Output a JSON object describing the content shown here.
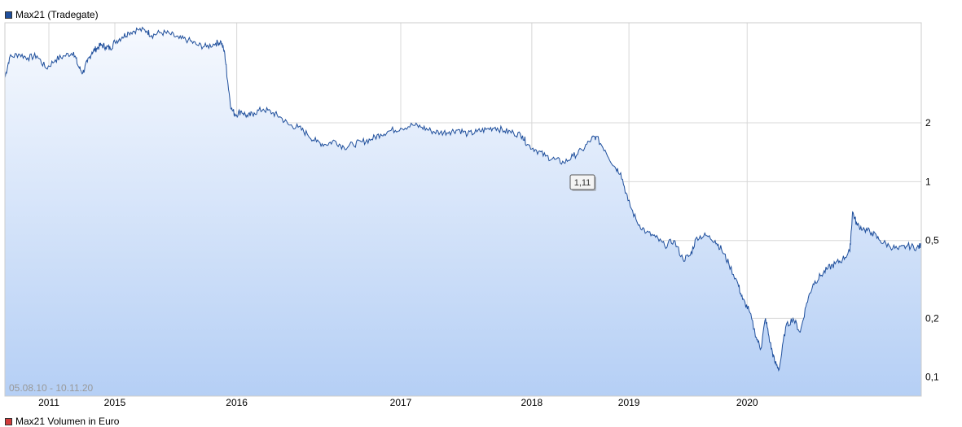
{
  "legend": {
    "price_series": "Max21 (Tradegate)",
    "volume_series": "Max21 Volumen in Euro"
  },
  "colors": {
    "price_line": "#1f4f9c",
    "price_swatch": "#1f4f9c",
    "volume_swatch": "#d23b3b",
    "fill_top": "#f6f9fe",
    "fill_bottom": "#b5cff5",
    "grid": "#d8d8d8"
  },
  "chart_data": {
    "type": "line",
    "date_range_label": "05.08.10 - 10.11.20",
    "tooltip_value": "1,11",
    "y_scale": "log",
    "ylim": [
      0.08,
      6.5
    ],
    "y_ticks": [
      {
        "value": 2,
        "label": "2"
      },
      {
        "value": 1,
        "label": "1"
      },
      {
        "value": 0.5,
        "label": "0,5"
      },
      {
        "value": 0.2,
        "label": "0,2"
      },
      {
        "value": 0.1,
        "label": "0,1"
      }
    ],
    "x_ticks": [
      {
        "x": 0.048,
        "label": "2011"
      },
      {
        "x": 0.12,
        "label": "2015"
      },
      {
        "x": 0.253,
        "label": "2016"
      },
      {
        "x": 0.432,
        "label": "2017"
      },
      {
        "x": 0.575,
        "label": "2018"
      },
      {
        "x": 0.681,
        "label": "2019"
      },
      {
        "x": 0.81,
        "label": "2020"
      }
    ],
    "grid": true,
    "legend_position": "top-left",
    "series": [
      {
        "name": "Max21 (Tradegate)",
        "points": [
          [
            0.0,
            3.4
          ],
          [
            0.005,
            4.3
          ],
          [
            0.015,
            4.5
          ],
          [
            0.025,
            4.3
          ],
          [
            0.035,
            4.4
          ],
          [
            0.045,
            3.8
          ],
          [
            0.055,
            4.2
          ],
          [
            0.065,
            4.4
          ],
          [
            0.075,
            4.6
          ],
          [
            0.08,
            3.9
          ],
          [
            0.085,
            3.6
          ],
          [
            0.09,
            4.1
          ],
          [
            0.095,
            4.6
          ],
          [
            0.1,
            4.8
          ],
          [
            0.105,
            5.0
          ],
          [
            0.11,
            4.9
          ],
          [
            0.115,
            4.8
          ],
          [
            0.12,
            5.2
          ],
          [
            0.128,
            5.5
          ],
          [
            0.135,
            5.8
          ],
          [
            0.145,
            6.0
          ],
          [
            0.155,
            5.9
          ],
          [
            0.16,
            5.6
          ],
          [
            0.17,
            5.8
          ],
          [
            0.18,
            5.7
          ],
          [
            0.19,
            5.4
          ],
          [
            0.2,
            5.3
          ],
          [
            0.21,
            5.0
          ],
          [
            0.22,
            4.9
          ],
          [
            0.23,
            5.1
          ],
          [
            0.236,
            5.2
          ],
          [
            0.24,
            4.5
          ],
          [
            0.243,
            3.3
          ],
          [
            0.247,
            2.35
          ],
          [
            0.252,
            2.2
          ],
          [
            0.258,
            2.3
          ],
          [
            0.265,
            2.15
          ],
          [
            0.272,
            2.25
          ],
          [
            0.282,
            2.35
          ],
          [
            0.292,
            2.25
          ],
          [
            0.3,
            2.15
          ],
          [
            0.31,
            1.95
          ],
          [
            0.32,
            1.9
          ],
          [
            0.33,
            1.75
          ],
          [
            0.34,
            1.6
          ],
          [
            0.35,
            1.55
          ],
          [
            0.36,
            1.62
          ],
          [
            0.37,
            1.5
          ],
          [
            0.38,
            1.55
          ],
          [
            0.39,
            1.6
          ],
          [
            0.4,
            1.65
          ],
          [
            0.41,
            1.75
          ],
          [
            0.42,
            1.82
          ],
          [
            0.432,
            1.88
          ],
          [
            0.445,
            1.95
          ],
          [
            0.455,
            1.9
          ],
          [
            0.465,
            1.82
          ],
          [
            0.475,
            1.78
          ],
          [
            0.485,
            1.8
          ],
          [
            0.495,
            1.85
          ],
          [
            0.505,
            1.75
          ],
          [
            0.515,
            1.8
          ],
          [
            0.525,
            1.85
          ],
          [
            0.535,
            1.9
          ],
          [
            0.545,
            1.82
          ],
          [
            0.555,
            1.78
          ],
          [
            0.565,
            1.72
          ],
          [
            0.57,
            1.55
          ],
          [
            0.58,
            1.45
          ],
          [
            0.59,
            1.35
          ],
          [
            0.6,
            1.3
          ],
          [
            0.61,
            1.25
          ],
          [
            0.62,
            1.35
          ],
          [
            0.63,
            1.45
          ],
          [
            0.64,
            1.65
          ],
          [
            0.645,
            1.7
          ],
          [
            0.655,
            1.45
          ],
          [
            0.665,
            1.2
          ],
          [
            0.672,
            1.11
          ],
          [
            0.68,
            0.8
          ],
          [
            0.69,
            0.62
          ],
          [
            0.7,
            0.55
          ],
          [
            0.71,
            0.52
          ],
          [
            0.72,
            0.47
          ],
          [
            0.73,
            0.5
          ],
          [
            0.74,
            0.4
          ],
          [
            0.748,
            0.42
          ],
          [
            0.755,
            0.52
          ],
          [
            0.765,
            0.53
          ],
          [
            0.775,
            0.5
          ],
          [
            0.782,
            0.45
          ],
          [
            0.79,
            0.38
          ],
          [
            0.8,
            0.3
          ],
          [
            0.805,
            0.25
          ],
          [
            0.812,
            0.22
          ],
          [
            0.82,
            0.16
          ],
          [
            0.825,
            0.14
          ],
          [
            0.83,
            0.2
          ],
          [
            0.835,
            0.15
          ],
          [
            0.84,
            0.12
          ],
          [
            0.845,
            0.11
          ],
          [
            0.852,
            0.18
          ],
          [
            0.86,
            0.2
          ],
          [
            0.868,
            0.17
          ],
          [
            0.875,
            0.24
          ],
          [
            0.882,
            0.3
          ],
          [
            0.89,
            0.33
          ],
          [
            0.898,
            0.36
          ],
          [
            0.906,
            0.38
          ],
          [
            0.914,
            0.4
          ],
          [
            0.922,
            0.44
          ],
          [
            0.925,
            0.7
          ],
          [
            0.93,
            0.6
          ],
          [
            0.938,
            0.57
          ],
          [
            0.946,
            0.55
          ],
          [
            0.955,
            0.5
          ],
          [
            0.965,
            0.47
          ],
          [
            0.975,
            0.45
          ],
          [
            0.985,
            0.47
          ],
          [
            0.995,
            0.46
          ],
          [
            1.0,
            0.47
          ]
        ]
      }
    ]
  }
}
